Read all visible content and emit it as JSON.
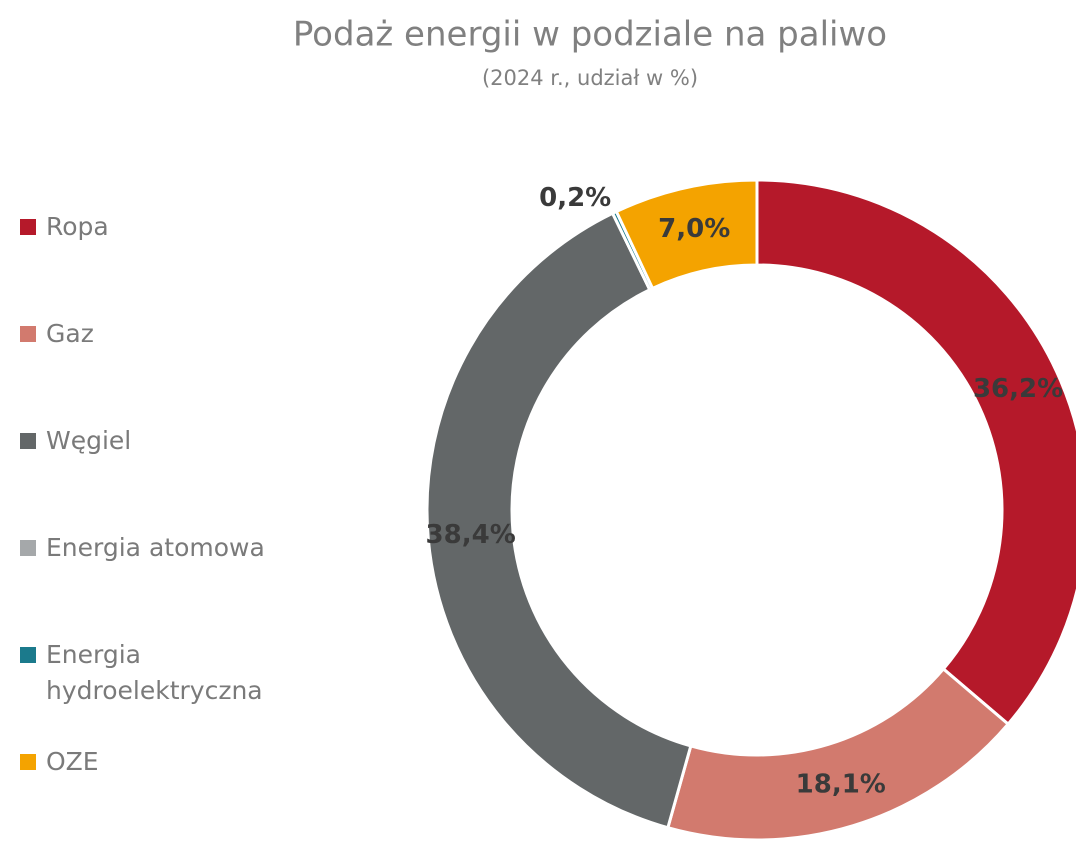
{
  "chart_data": {
    "type": "doughnut",
    "title": "Podaż energii w podziale na paliwo",
    "subtitle": "(2024 r., udział w %)",
    "categories": [
      "Ropa",
      "Gaz",
      "Węgiel",
      "Energia atomowa",
      "Energia hydroelektryczna",
      "OZE"
    ],
    "values": [
      36.2,
      18.1,
      38.4,
      0,
      0.2,
      7.0
    ],
    "value_labels": [
      "36,2%",
      "18,1%",
      "38,4%",
      null,
      "0,2%",
      "7,0%"
    ],
    "colors": [
      "#b5192a",
      "#d27a6e",
      "#636768",
      "#a5a8aa",
      "#1b7a8c",
      "#f4a300"
    ],
    "legend": "left"
  }
}
